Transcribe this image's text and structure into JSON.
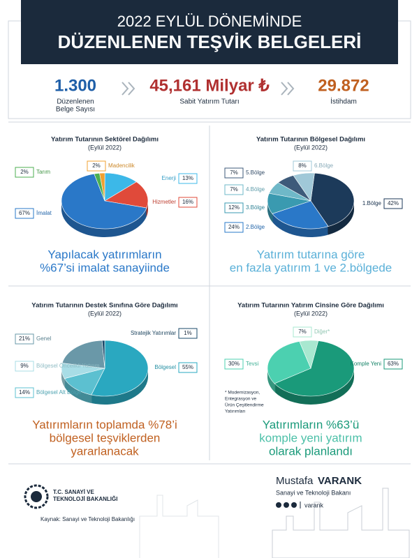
{
  "header": {
    "line1": "2022 EYLÜL DÖNEMİNDE",
    "line2": "DÜZENLENEN TEŞVİK BELGELERİ"
  },
  "stats": [
    {
      "value": "1.300",
      "label": [
        "Düzenlenen",
        "Belge Sayısı"
      ]
    },
    {
      "value": "45,161 Milyar ₺",
      "label": [
        "Sabit Yatırım Tutarı"
      ]
    },
    {
      "value": "29.872",
      "label": [
        "İstihdam"
      ]
    }
  ],
  "chart_data": [
    {
      "type": "pie",
      "title": "Yatırım Tutarının Sektörel Dağılımı",
      "subtitle": "(Eylül 2022)",
      "categories": [
        "Madencilik",
        "Enerji",
        "Hizmetler",
        "İmalat",
        "Tarım"
      ],
      "values": [
        2,
        13,
        16,
        67,
        2
      ],
      "value_labels": [
        "2%",
        "13%",
        "16%",
        "67%",
        "2%"
      ],
      "colors": [
        "#f0a030",
        "#3cb8e8",
        "#e04a3a",
        "#2a78c8",
        "#4caf50"
      ],
      "caption": [
        "Yapılacak yatırımların",
        "%67’si imalat sanayiinde"
      ]
    },
    {
      "type": "pie",
      "title": "Yatırım Tutarının Bölgesel Dağılımı",
      "subtitle": "(Eylül 2022)",
      "categories": [
        "1.Bölge",
        "2.Bölge",
        "3.Bölge",
        "4.Bölge",
        "5.Bölge",
        "6.Bölge"
      ],
      "values": [
        42,
        24,
        12,
        7,
        7,
        8
      ],
      "value_labels": [
        "42%",
        "24%",
        "12%",
        "7%",
        "7%",
        "8%"
      ],
      "colors": [
        "#1c3a5a",
        "#2a78c8",
        "#3a9ab0",
        "#6fb8c8",
        "#3d5a7a",
        "#a0c8d8"
      ],
      "caption": [
        "Yatırım tutarına göre",
        "en fazla yatırım 1 ve 2.bölgede"
      ]
    },
    {
      "type": "pie",
      "title": "Yatırım Tutarının Destek Sınıfına Göre Dağılımı",
      "subtitle": "(Eylül 2022)",
      "categories": [
        "Bölgesel",
        "Bölgesel Alt Bölge",
        "Bölgesel Öncelikli Yatırım",
        "Genel",
        "Stratejik Yatırımlar"
      ],
      "values": [
        55,
        14,
        9,
        21,
        1
      ],
      "value_labels": [
        "55%",
        "14%",
        "9%",
        "21%",
        "1%"
      ],
      "colors": [
        "#2aa8c0",
        "#5cc0d0",
        "#a8dde6",
        "#6a98a8",
        "#1a4a6a"
      ],
      "caption": [
        "Yatırımların toplamda %78’i",
        "bölgesel teşviklerden",
        "yararlanacak"
      ]
    },
    {
      "type": "pie",
      "title": "Yatırım Tutarının Yatırım Cinsine Göre Dağılımı",
      "subtitle": "(Eylül 2022)",
      "categories": [
        "Komple Yeni",
        "Tevsi",
        "Diğer*"
      ],
      "values": [
        63,
        30,
        7
      ],
      "value_labels": [
        "63%",
        "30%",
        "7%"
      ],
      "colors": [
        "#1a9a7a",
        "#4cd0b0",
        "#a8e8d0"
      ],
      "note": [
        "* Modernizasyon,",
        "Entegrasyon ve",
        "Ürün Çeşitlendirme",
        "Yatırımları"
      ],
      "caption": [
        "Yatırımların %63’ü",
        "komple yeni yatırım",
        "olarak planlandı"
      ]
    }
  ],
  "footer": {
    "ministry": [
      "T.C. SANAYİ VE",
      "TEKNOLOJİ BAKANLIĞI"
    ],
    "source": "Kaynak: Sanayi ve Teknoloji Bakanlığı",
    "first_name": "Mustafa",
    "last_name": "VARANK",
    "role": "Sanayi ve Teknoloji Bakanı",
    "handle": "varank"
  }
}
